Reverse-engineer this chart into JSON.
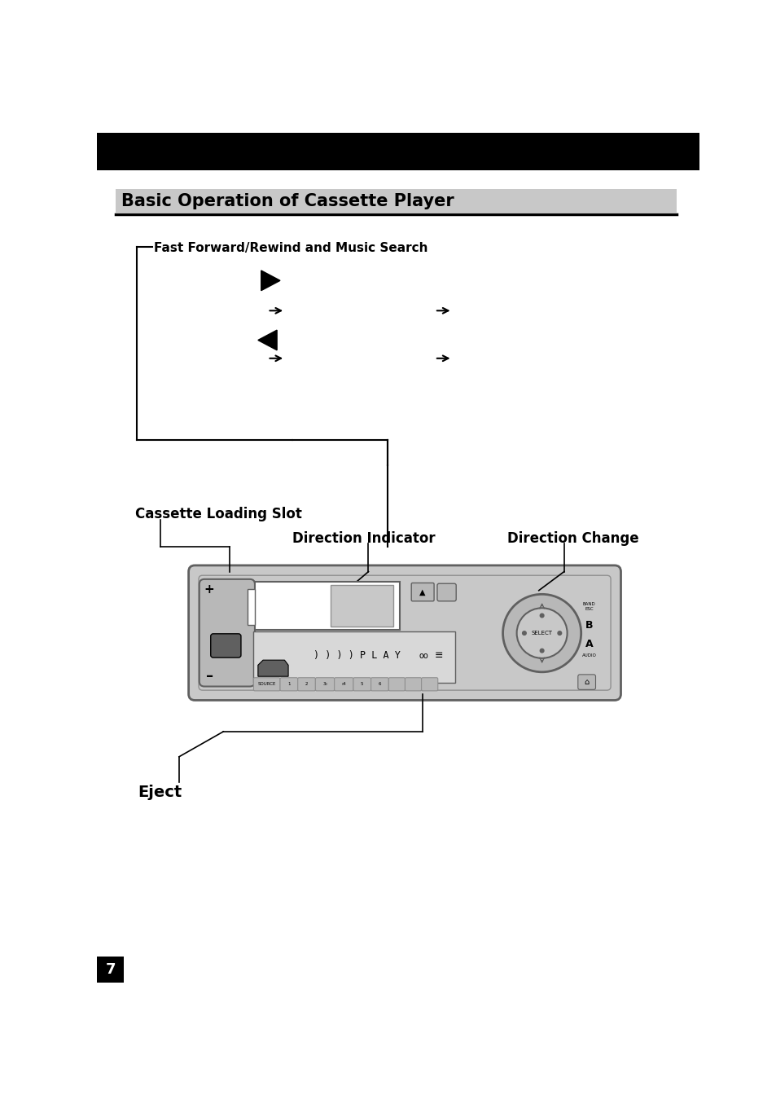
{
  "title": "Basic Operation of Cassette Player",
  "section1_label": "Fast Forward/Rewind and Music Search",
  "section2_label": "Cassette Loading Slot",
  "section3_label": "Direction Indicator",
  "section4_label": "Direction Change",
  "section5_label": "Eject",
  "page_number": "7",
  "bg_color": "#ffffff",
  "black": "#000000",
  "gray": "#b8b8b8",
  "dark_gray": "#606060",
  "mid_gray": "#909090",
  "light_gray": "#c8c8c8",
  "header_bg": "#000000",
  "title_bar_bg": "#c8c8c8"
}
